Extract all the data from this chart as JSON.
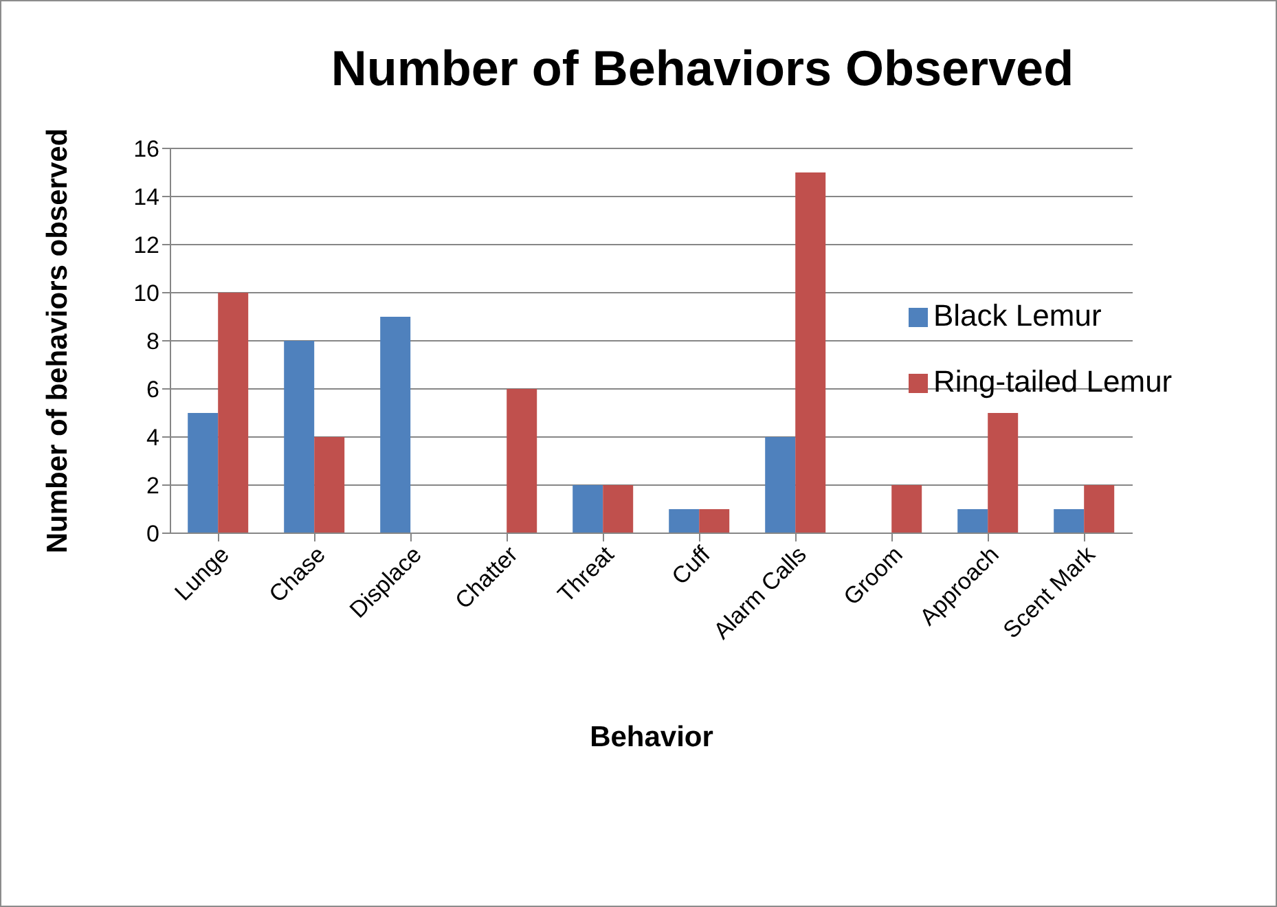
{
  "chart_data": {
    "type": "bar",
    "title": "Number of Behaviors Observed",
    "xlabel": "Behavior",
    "ylabel": "Number of behaviors observed",
    "categories": [
      "Lunge",
      "Chase",
      "Displace",
      "Chatter",
      "Threat",
      "Cuff",
      "Alarm Calls",
      "Groom",
      "Approach",
      "Scent Mark"
    ],
    "series": [
      {
        "name": "Black Lemur",
        "color": "#4f81bd",
        "values": [
          5,
          8,
          9,
          0,
          2,
          1,
          4,
          0,
          1,
          1
        ]
      },
      {
        "name": "Ring-tailed Lemur",
        "color": "#c0504d",
        "values": [
          10,
          4,
          0,
          6,
          2,
          1,
          15,
          2,
          5,
          2
        ]
      }
    ],
    "ylim": [
      0,
      16
    ],
    "yticks": [
      0,
      2,
      4,
      6,
      8,
      10,
      12,
      14,
      16
    ],
    "grid": "y",
    "legend": "right"
  }
}
